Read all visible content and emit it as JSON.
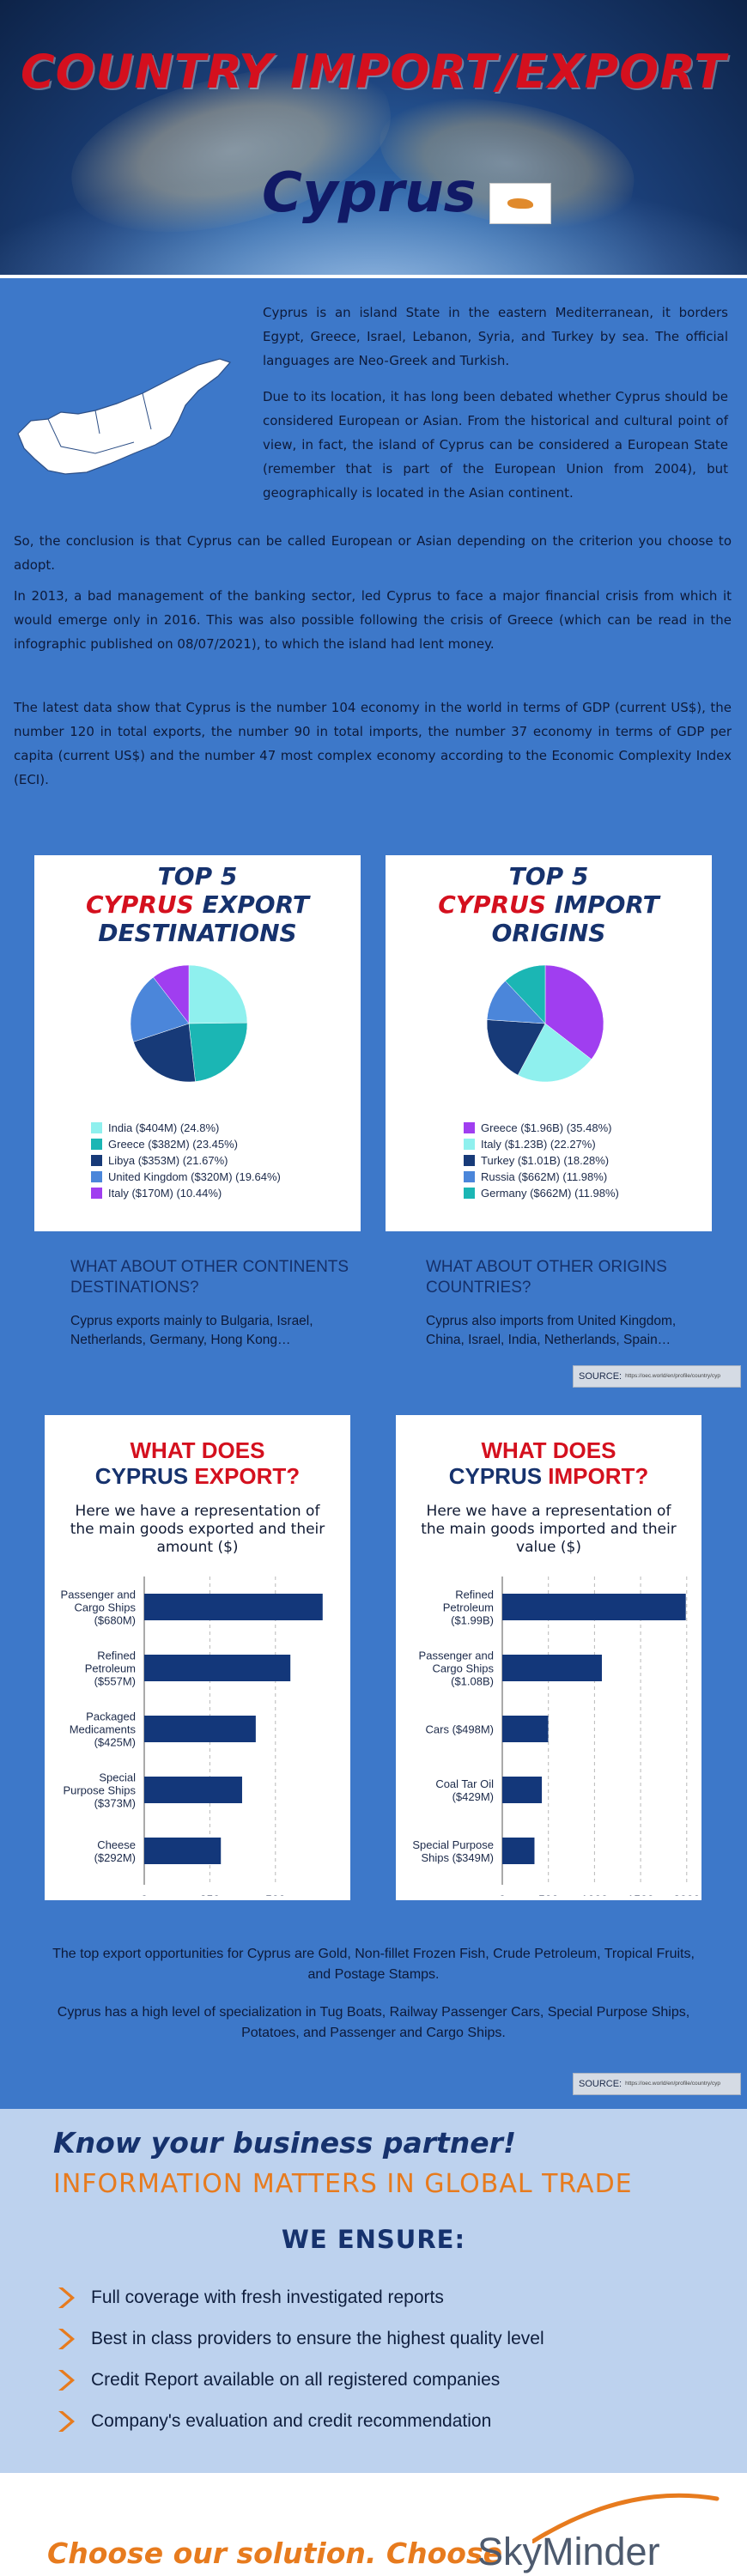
{
  "header": {
    "title": "COUNTRY IMPORT/EXPORT",
    "country": "Cyprus"
  },
  "intro": {
    "p1": "Cyprus is an island State in the eastern Mediterranean, it borders Egypt, Greece, Israel, Lebanon, Syria, and Turkey by sea. The official languages are Neo-Greek and Turkish.",
    "p2": "Due to its location, it has long been debated whether Cyprus should be considered European or Asian. From the historical and cultural point of view, in fact, the island of Cyprus can be considered a European State (remember that is part of the European Union from 2004), but geographically is located in the Asian continent.",
    "p3": "So, the conclusion is that Cyprus can be called European or Asian depending on the criterion you choose to adopt.",
    "p4": "In 2013, a bad management of the banking sector, led Cyprus to face a major financial crisis from which it would emerge only in 2016. This was also possible following the crisis of Greece (which can be read in the infographic published on 08/07/2021), to which the island had lent money.",
    "p5": "The latest data show that Cyprus is the number 104 economy in the world in terms of GDP (current US$), the number 120 in total exports, the number 90 in total imports, the number 37 economy in terms of GDP per capita (current US$) and the number 47 most complex economy according to the Economic Complexity Index (ECI)."
  },
  "export_card": {
    "title_top": "TOP 5",
    "title_red": "CYPRUS",
    "title_rest": "EXPORT",
    "title_bottom": "DESTINATIONS"
  },
  "import_card": {
    "title_top": "TOP 5",
    "title_red": "CYPRUS",
    "title_rest": "IMPORT",
    "title_bottom": "ORIGINS"
  },
  "continents": {
    "export_q": "WHAT ABOUT OTHER CONTINENTS DESTINATIONS?",
    "export_a": "Cyprus exports mainly to Bulgaria, Israel, Netherlands, Germany, Hong Kong…",
    "import_q": "WHAT ABOUT OTHER ORIGINS COUNTRIES?",
    "import_a": "Cyprus also imports from United Kingdom, China, Israel, India, Netherlands, Spain…"
  },
  "source": {
    "label": "SOURCE:",
    "url": "https://oec.world/en/profile/country/cyp"
  },
  "export_bar_card": {
    "title_a": "WHAT DOES",
    "title_b": "CYPRUS",
    "title_c": "EXPORT?",
    "subtitle": "Here we have a representation of the main goods exported and their amount ($)"
  },
  "import_bar_card": {
    "title_a": "WHAT DOES",
    "title_b": "CYPRUS",
    "title_c": "IMPORT?",
    "subtitle": "Here we have a representation of the main goods imported and their value ($)"
  },
  "bottom": {
    "p1": "The top export opportunities for Cyprus are Gold, Non-fillet Frozen Fish, Crude Petroleum, Tropical Fruits, and Postage Stamps.",
    "p2": "Cyprus has a high level of specialization in Tug Boats, Railway Passenger Cars, Special Purpose Ships, Potatoes, and Passenger and Cargo Ships."
  },
  "know": {
    "h1": "Know your business partner!",
    "h2": "INFORMATION MATTERS IN GLOBAL TRADE",
    "h3": "WE ENSURE:",
    "items": [
      "Full coverage with fresh investigated reports",
      "Best in class providers to ensure the highest quality level",
      "Credit Report available on all registered companies",
      "Company's evaluation and credit recommendation"
    ]
  },
  "footer": {
    "choose": "Choose our solution. Choose",
    "brand": "SkyMinder"
  },
  "colors": {
    "red": "#d4101e",
    "navy": "#16326d",
    "orange": "#e77b1e",
    "bar": "#13377a"
  },
  "chart_data": [
    {
      "type": "pie",
      "categories": [
        "India ($404M) (24.8%)",
        "Greece ($382M) (23.45%)",
        "Libya ($353M) (21.67%)",
        "United Kingdom ($320M) (19.64%)",
        "Italy ($170M) (10.44%)"
      ],
      "values": [
        24.8,
        23.45,
        21.67,
        19.64,
        10.44
      ],
      "colors": [
        "#8ff0ee",
        "#1bb6b4",
        "#173a78",
        "#4b86da",
        "#a03ef0"
      ],
      "legend": "bottom"
    },
    {
      "type": "pie",
      "categories": [
        "Greece ($1.96B) (35.48%)",
        "Italy ($1.23B) (22.27%)",
        "Turkey ($1.01B) (18.28%)",
        "Russia ($662M) (11.98%)",
        "Germany ($662M) (11.98%)"
      ],
      "values": [
        35.48,
        22.27,
        18.28,
        11.98,
        11.98
      ],
      "colors": [
        "#a03ef0",
        "#8ff0ee",
        "#173a78",
        "#4b86da",
        "#1bb6b4"
      ],
      "legend": "bottom"
    },
    {
      "type": "bar",
      "orientation": "horizontal",
      "categories": [
        "Passenger and Cargo Ships ($680M)",
        "Refined Petroleum ($557M)",
        "Packaged Medicaments ($425M)",
        "Special Purpose Ships ($373M)",
        "Cheese ($292M)"
      ],
      "category_lines": [
        [
          "Passenger and",
          "Cargo Ships",
          "($680M)"
        ],
        [
          "Refined",
          "Petroleum",
          "($557M)"
        ],
        [
          "Packaged",
          "Medicaments",
          "($425M)"
        ],
        [
          "Special",
          "Purpose Ships",
          "($373M)"
        ],
        [
          "Cheese",
          "($292M)"
        ]
      ],
      "values": [
        680,
        557,
        425,
        373,
        292
      ],
      "xlim": [
        0,
        720
      ],
      "xticks": [
        0,
        250,
        500
      ],
      "grid": true
    },
    {
      "type": "bar",
      "orientation": "horizontal",
      "categories": [
        "Refined Petroleum ($1.99B)",
        "Passenger and Cargo Ships ($1.08B)",
        "Cars ($498M)",
        "Coal Tar Oil ($429M)",
        "Special Purpose Ships ($349M)"
      ],
      "category_lines": [
        [
          "Refined",
          "Petroleum",
          "($1.99B)"
        ],
        [
          "Passenger and",
          "Cargo Ships",
          "($1.08B)"
        ],
        [
          "Cars ($498M)"
        ],
        [
          "Coal Tar Oil",
          "($429M)"
        ],
        [
          "Special Purpose",
          "Ships ($349M)"
        ]
      ],
      "values": [
        1990,
        1080,
        498,
        429,
        349
      ],
      "xlim": [
        0,
        2030
      ],
      "xticks": [
        0,
        500,
        1000,
        1500,
        2000
      ],
      "grid": true
    }
  ]
}
